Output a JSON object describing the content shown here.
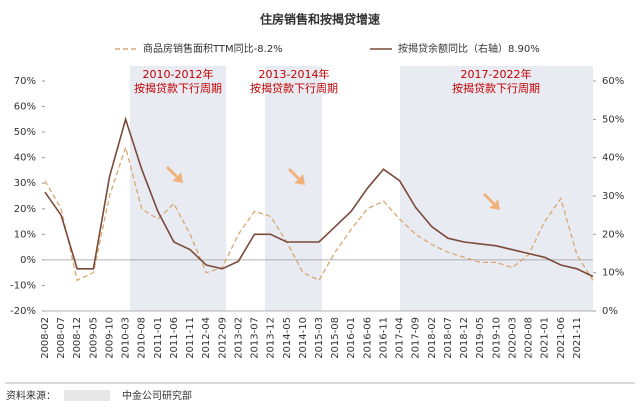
{
  "chart_data": {
    "type": "line",
    "title": "住房销售和按揭贷增速",
    "categories": [
      "2008-02",
      "2008-07",
      "2008-12",
      "2009-05",
      "2009-10",
      "2010-03",
      "2010-08",
      "2011-01",
      "2011-06",
      "2011-11",
      "2012-04",
      "2012-09",
      "2013-02",
      "2013-07",
      "2013-12",
      "2014-05",
      "2014-10",
      "2015-03",
      "2015-08",
      "2016-01",
      "2016-06",
      "2016-11",
      "2017-04",
      "2017-09",
      "2018-02",
      "2018-07",
      "2018-12",
      "2019-05",
      "2019-10",
      "2020-03",
      "2020-08",
      "2021-01",
      "2021-06",
      "2021-11",
      null
    ],
    "series": [
      {
        "name": "商品房销售面积TTM同比-8.2%",
        "color": "#d9a870",
        "dashed": true,
        "values": [
          31,
          20,
          -8,
          -5,
          25,
          44,
          20,
          16,
          22,
          10,
          -5,
          -3,
          10,
          19,
          17,
          7,
          -5,
          -8,
          3,
          12,
          20,
          23,
          16,
          10,
          6,
          3,
          1,
          -1,
          -1,
          -3,
          2,
          15,
          24,
          2,
          -8
        ]
      },
      {
        "name": "按揭贷余额同比（右轴）8.90%",
        "color": "#7b4a3a",
        "axis": "y2",
        "values": [
          31,
          25,
          11,
          11,
          35,
          50,
          37,
          26,
          18,
          16,
          12,
          11,
          13,
          20,
          20,
          18,
          18,
          18,
          22,
          26,
          32,
          37,
          34,
          27,
          22,
          19,
          18,
          17.5,
          17,
          16,
          15,
          14,
          12,
          11,
          9
        ]
      }
    ],
    "ylim": [
      -20,
      70
    ],
    "yticks": [
      {
        "value": -20,
        "label": "-20%"
      },
      {
        "value": -10,
        "label": "-10%"
      },
      {
        "value": 0,
        "label": "0%"
      },
      {
        "value": 10,
        "label": "10%"
      },
      {
        "value": 20,
        "label": "20%"
      },
      {
        "value": 30,
        "label": "30%"
      },
      {
        "value": 40,
        "label": "40%"
      },
      {
        "value": 50,
        "label": "50%"
      },
      {
        "value": 60,
        "label": "60%"
      },
      {
        "value": 70,
        "label": "70%"
      }
    ],
    "y2lim": [
      0,
      60
    ],
    "y2ticks": [
      {
        "value": 0,
        "label": "0%"
      },
      {
        "value": 10,
        "label": "10%"
      },
      {
        "value": 20,
        "label": "20%"
      },
      {
        "value": 30,
        "label": "30%"
      },
      {
        "value": 40,
        "label": "40%"
      },
      {
        "value": 50,
        "label": "50%"
      },
      {
        "value": 60,
        "label": "60%"
      }
    ],
    "annotations": [
      "2010-2012年",
      "按揭贷款下行周期",
      "2013-2014年",
      "按揭贷款下行周期",
      "2017-2022年",
      "按揭贷款下行周期"
    ],
    "source": [
      "资料来源：",
      "中金公司研究部"
    ]
  }
}
